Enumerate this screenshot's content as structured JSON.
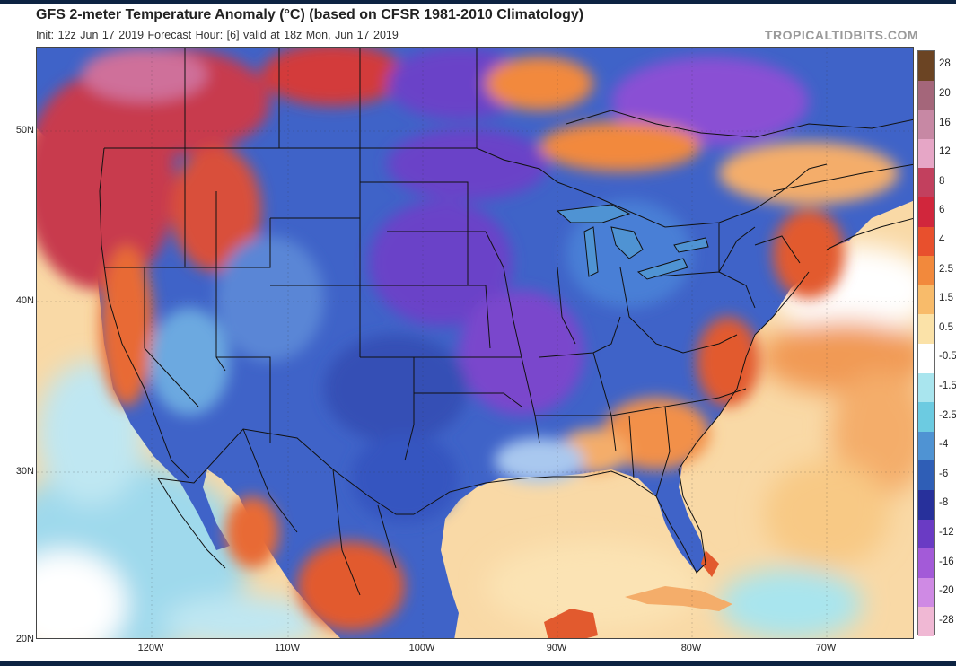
{
  "header": {
    "title": "GFS 2-meter Temperature Anomaly (°C) (based on CFSR 1981-2010 Climatology)",
    "subtitle": "Init: 12z Jun 17 2019   Forecast Hour: [6]   valid at 18z Mon, Jun 17 2019",
    "watermark": "TROPICALTIDBITS.COM"
  },
  "map": {
    "lat_labels": [
      "50N",
      "40N",
      "30N",
      "20N"
    ],
    "lon_labels": [
      "120W",
      "110W",
      "100W",
      "90W",
      "80W",
      "70W"
    ]
  },
  "colorbar": {
    "labels": [
      "28",
      "20",
      "16",
      "12",
      "8",
      "6",
      "4",
      "2.5",
      "1.5",
      "0.5",
      "-0.5",
      "-1.5",
      "-2.5",
      "-4",
      "-6",
      "-8",
      "-12",
      "-16",
      "-20",
      "-28"
    ],
    "colors": [
      "#6b4423",
      "#a4667a",
      "#c788a4",
      "#e6a6c6",
      "#c2405e",
      "#d1263c",
      "#e8502d",
      "#f2893c",
      "#f8bb6a",
      "#fbe2a8",
      "#ffffff",
      "#a9e5ee",
      "#6ccbe1",
      "#4f93d3",
      "#2f5eb6",
      "#27309b",
      "#6a3bc4",
      "#a35ad8",
      "#cf8ae4",
      "#f0b8d4"
    ]
  },
  "palette": {
    "ocean_warm": "#f9d9a6",
    "ocean_cool": "#9fd9ec",
    "land_cold": "#3f63c8",
    "land_very_cold": "#6b42c8",
    "land_warm": "#e25a2e",
    "land_hot": "#c83a4e"
  }
}
